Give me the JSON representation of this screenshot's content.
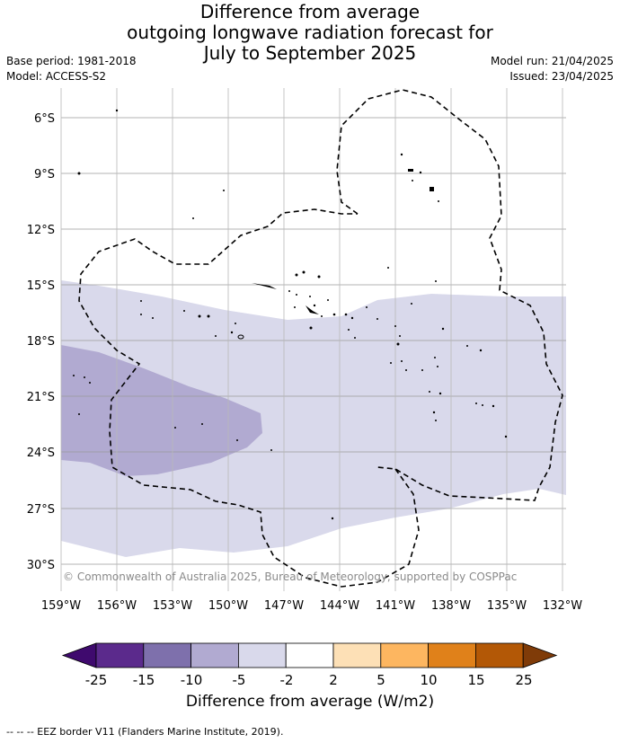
{
  "title": {
    "line1": "Difference from average",
    "line2": "outgoing longwave radiation forecast for",
    "line3": "July to September 2025"
  },
  "meta": {
    "base_period": "Base period: 1981-2018",
    "model": "Model: ACCESS-S2",
    "model_run": "Model run: 21/04/2025",
    "issued": "Issued: 23/04/2025"
  },
  "map": {
    "copyright": "© Commonwealth of Australia 2025, Bureau of Meteorology, supported by COSPPac",
    "lat_labels": [
      "6°S",
      "9°S",
      "12°S",
      "15°S",
      "18°S",
      "21°S",
      "24°S",
      "27°S",
      "30°S"
    ],
    "lon_labels": [
      "159°W",
      "156°W",
      "153°W",
      "150°W",
      "147°W",
      "144°W",
      "141°W",
      "138°W",
      "135°W",
      "132°W"
    ],
    "gridlines": true
  },
  "colorbar": {
    "tick_labels": [
      "-25",
      "-15",
      "-10",
      "-5",
      "-2",
      "2",
      "5",
      "10",
      "15",
      "25"
    ],
    "colors": [
      "#3f0a6e",
      "#5b2a8c",
      "#7e70ac",
      "#b1aad1",
      "#d9d9eb",
      "#ffffff",
      "#fde0b6",
      "#fdb660",
      "#e0811a",
      "#b35806",
      "#7f3b08"
    ],
    "label": "Difference from average (W/m2)"
  },
  "footnote": "-- -- -- EEZ border V11 (Flanders Marine Institute, 2019)."
}
